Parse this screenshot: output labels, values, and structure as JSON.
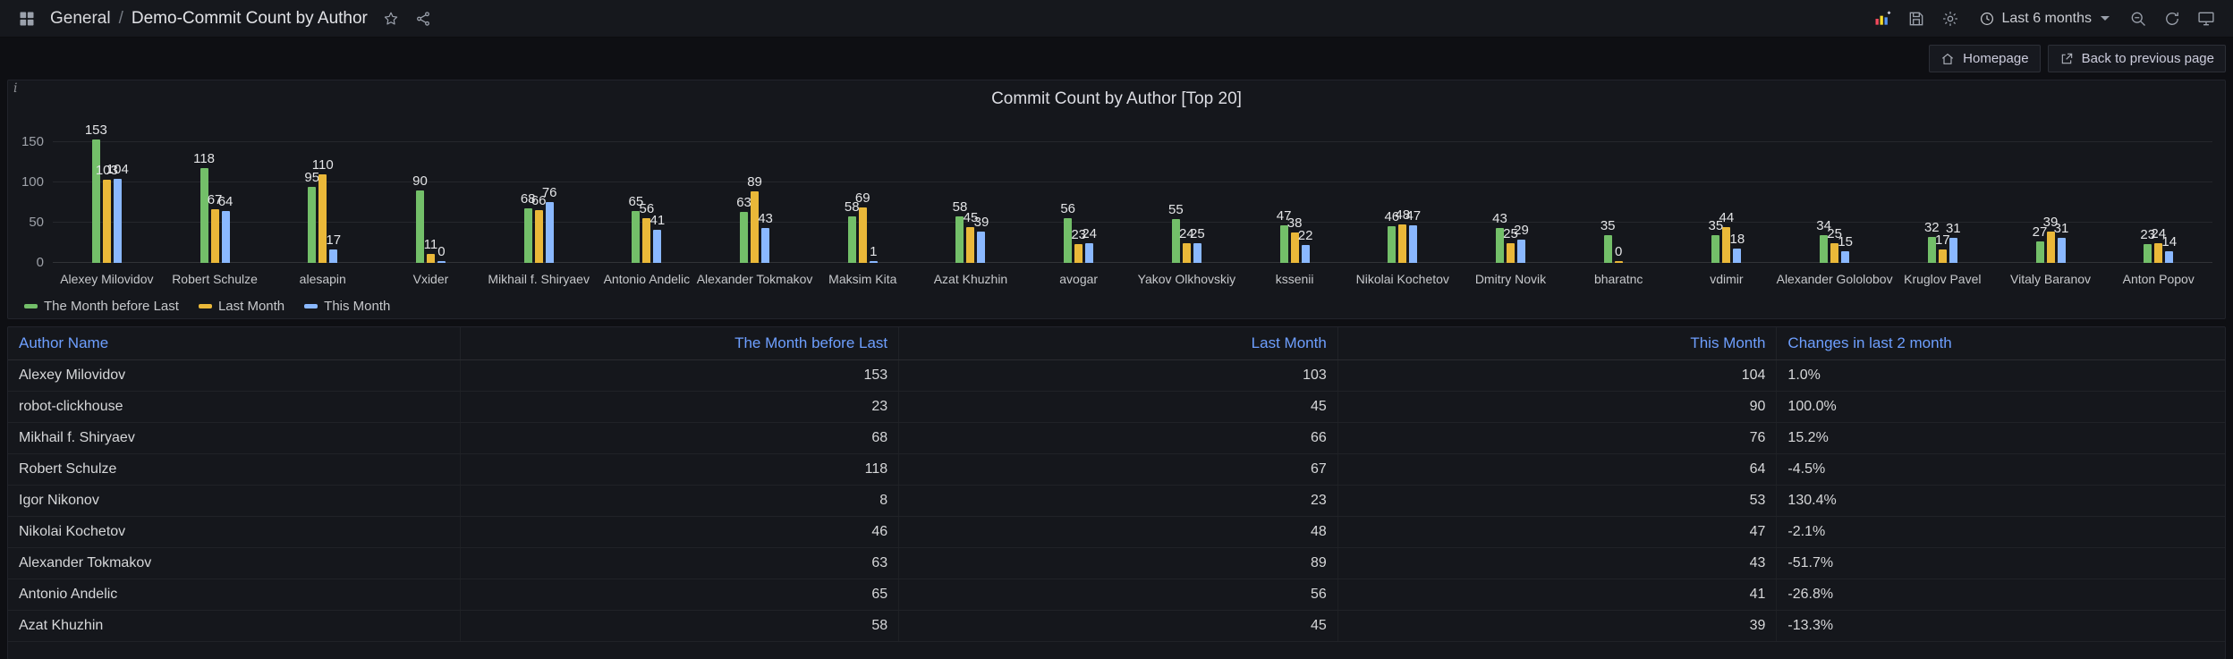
{
  "colors": {
    "bg": "#0e0f13",
    "panel": "#15171c",
    "link": "#6e9fff",
    "nav": "#16181d"
  },
  "topnav": {
    "breadcrumb": {
      "section": "General",
      "separator": "/",
      "title": "Demo-Commit Count by Author"
    },
    "time_picker": {
      "label": "Last 6 months"
    }
  },
  "toolbar_links": {
    "homepage": "Homepage",
    "back": "Back to previous page"
  },
  "chart_panel": {
    "title": "Commit Count by Author [Top 20]",
    "info_icon": "i"
  },
  "chart_data": {
    "type": "bar",
    "title": "Commit Count by Author [Top 20]",
    "categories": [
      "Alexey Milovidov",
      "Robert Schulze",
      "alesapin",
      "Vxider",
      "Mikhail f. Shiryaev",
      "Antonio Andelic",
      "Alexander Tokmakov",
      "Maksim Kita",
      "Azat Khuzhin",
      "avogar",
      "Yakov Olkhovskiy",
      "kssenii",
      "Nikolai Kochetov",
      "Dmitry Novik",
      "bharatnc",
      "vdimir",
      "Alexander Gololobov",
      "Kruglov Pavel",
      "Vitaly Baranov",
      "Anton Popov"
    ],
    "series": [
      {
        "name": "The Month before Last",
        "color": "#73bf69",
        "values": [
          153,
          118,
          95,
          90,
          68,
          65,
          63,
          58,
          58,
          56,
          55,
          47,
          46,
          43,
          35,
          35,
          34,
          32,
          27,
          23
        ]
      },
      {
        "name": "Last Month",
        "color": "#eab839",
        "values": [
          103,
          67,
          110,
          11,
          66,
          56,
          89,
          69,
          45,
          23,
          24,
          38,
          48,
          25,
          0,
          44,
          25,
          17,
          39,
          24
        ]
      },
      {
        "name": "This Month",
        "color": "#8ab8ff",
        "values": [
          104,
          64,
          17,
          0,
          76,
          41,
          43,
          1,
          39,
          24,
          25,
          22,
          47,
          29,
          null,
          18,
          15,
          31,
          31,
          14
        ]
      }
    ],
    "ylim": [
      0,
      160
    ],
    "yticks": [
      0,
      50,
      100,
      150
    ],
    "grid": true,
    "value_labels": true,
    "legend_position": "bottom-left"
  },
  "table": {
    "columns": [
      "Author Name",
      "The Month before Last",
      "Last Month",
      "This Month",
      "Changes in last 2 month"
    ],
    "rows": [
      [
        "Alexey Milovidov",
        "153",
        "103",
        "104",
        "1.0%"
      ],
      [
        "robot-clickhouse",
        "23",
        "45",
        "90",
        "100.0%"
      ],
      [
        "Mikhail f. Shiryaev",
        "68",
        "66",
        "76",
        "15.2%"
      ],
      [
        "Robert Schulze",
        "118",
        "67",
        "64",
        "-4.5%"
      ],
      [
        "Igor Nikonov",
        "8",
        "23",
        "53",
        "130.4%"
      ],
      [
        "Nikolai Kochetov",
        "46",
        "48",
        "47",
        "-2.1%"
      ],
      [
        "Alexander Tokmakov",
        "63",
        "89",
        "43",
        "-51.7%"
      ],
      [
        "Antonio Andelic",
        "65",
        "56",
        "41",
        "-26.8%"
      ],
      [
        "Azat Khuzhin",
        "58",
        "45",
        "39",
        "-13.3%"
      ]
    ]
  }
}
